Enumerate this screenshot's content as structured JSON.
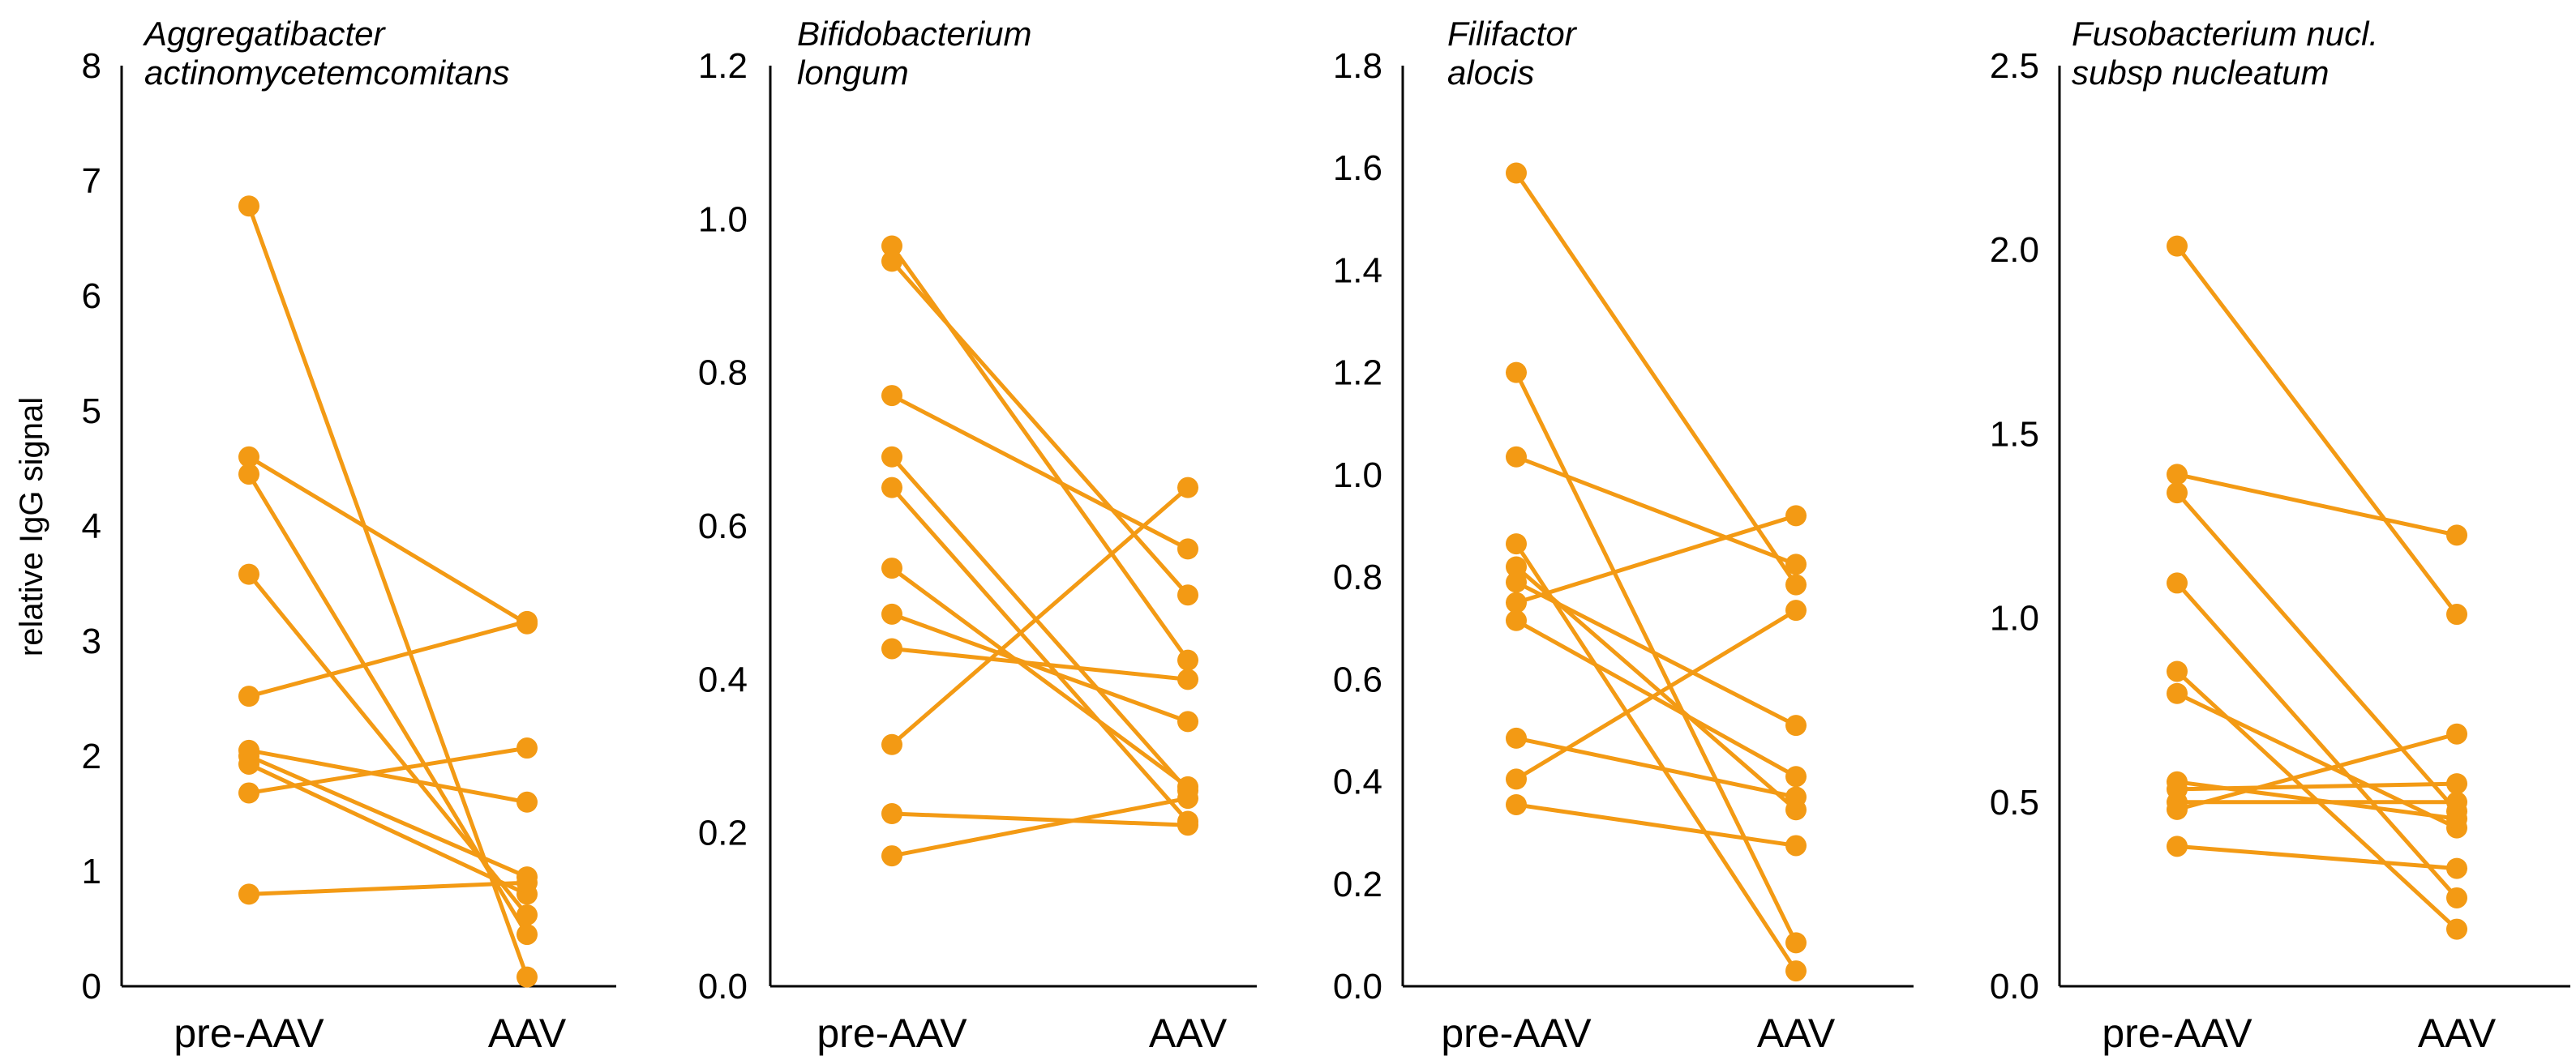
{
  "accent_color": "#F39A14",
  "ylabel": "relative IgG signal",
  "chart_data": [
    {
      "type": "line",
      "title_lines": [
        "Aggregatibacter",
        "actinomycetemcomitans"
      ],
      "categories": [
        "pre-AAV",
        "AAV"
      ],
      "ylim": [
        0,
        8
      ],
      "yticks": [
        "0",
        "1",
        "2",
        "3",
        "4",
        "5",
        "6",
        "7",
        "8"
      ],
      "pairs": [
        [
          6.78,
          0.08
        ],
        [
          4.6,
          3.15
        ],
        [
          4.45,
          0.45
        ],
        [
          3.58,
          0.62
        ],
        [
          2.52,
          3.17
        ],
        [
          2.05,
          1.6
        ],
        [
          2.0,
          0.95
        ],
        [
          1.93,
          0.8
        ],
        [
          1.68,
          2.07
        ],
        [
          0.8,
          0.9
        ]
      ]
    },
    {
      "type": "line",
      "title_lines": [
        "Bifidobacterium",
        "longum"
      ],
      "categories": [
        "pre-AAV",
        "AAV"
      ],
      "ylim": [
        0,
        1.2
      ],
      "yticks": [
        "0.0",
        "0.2",
        "0.4",
        "0.6",
        "0.8",
        "1.0",
        "1.2"
      ],
      "pairs": [
        [
          0.965,
          0.425
        ],
        [
          0.945,
          0.51
        ],
        [
          0.77,
          0.57
        ],
        [
          0.69,
          0.255
        ],
        [
          0.65,
          0.215
        ],
        [
          0.545,
          0.26
        ],
        [
          0.485,
          0.345
        ],
        [
          0.44,
          0.4
        ],
        [
          0.315,
          0.65
        ],
        [
          0.225,
          0.21
        ],
        [
          0.17,
          0.245
        ]
      ]
    },
    {
      "type": "line",
      "title_lines": [
        "Filifactor",
        "alocis"
      ],
      "categories": [
        "pre-AAV",
        "AAV"
      ],
      "ylim": [
        0,
        1.8
      ],
      "yticks": [
        "0.0",
        "0.2",
        "0.4",
        "0.6",
        "0.8",
        "1.0",
        "1.2",
        "1.4",
        "1.6",
        "1.8"
      ],
      "pairs": [
        [
          1.59,
          0.785
        ],
        [
          1.2,
          0.085
        ],
        [
          1.035,
          0.825
        ],
        [
          0.865,
          0.03
        ],
        [
          0.82,
          0.345
        ],
        [
          0.79,
          0.51
        ],
        [
          0.75,
          0.92
        ],
        [
          0.715,
          0.41
        ],
        [
          0.485,
          0.37
        ],
        [
          0.405,
          0.735
        ],
        [
          0.355,
          0.275
        ]
      ]
    },
    {
      "type": "line",
      "title_lines": [
        "Fusobacterium nucl.",
        "subsp nucleatum"
      ],
      "categories": [
        "pre-AAV",
        "AAV"
      ],
      "ylim": [
        0,
        2.5
      ],
      "yticks": [
        "0.0",
        "0.5",
        "1.0",
        "1.5",
        "2.0",
        "2.5"
      ],
      "pairs": [
        [
          2.01,
          1.01
        ],
        [
          1.39,
          1.225
        ],
        [
          1.34,
          0.475
        ],
        [
          1.095,
          0.24
        ],
        [
          0.855,
          0.155
        ],
        [
          0.795,
          0.43
        ],
        [
          0.555,
          0.455
        ],
        [
          0.535,
          0.55
        ],
        [
          0.5,
          0.5
        ],
        [
          0.48,
          0.685
        ],
        [
          0.38,
          0.32
        ]
      ]
    }
  ]
}
